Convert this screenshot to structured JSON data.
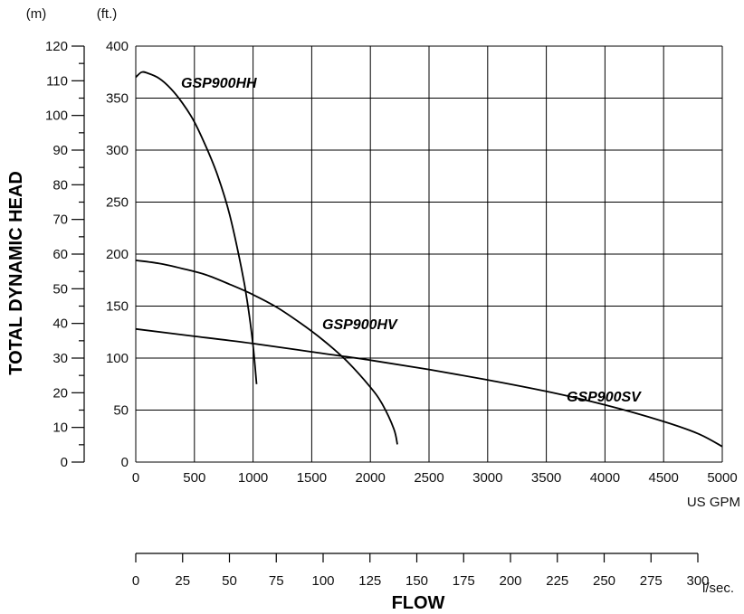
{
  "chart_data": {
    "type": "line",
    "xlabel": "FLOW",
    "ylabel": "TOTAL DYNAMIC HEAD",
    "x_unit": "US GPM",
    "x2_unit": "l/sec.",
    "y_unit_left": "(m)",
    "y_unit_right": "(ft.)",
    "xlim": [
      0,
      5000
    ],
    "ylim_ft": [
      0,
      400
    ],
    "ylim_m": [
      0,
      120
    ],
    "grid": true,
    "x_ticks": [
      0,
      500,
      1000,
      1500,
      2000,
      2500,
      3000,
      3500,
      4000,
      4500,
      5000
    ],
    "x2_ticks": [
      0,
      25,
      50,
      75,
      100,
      125,
      150,
      175,
      200,
      225,
      250,
      275,
      300
    ],
    "y_ticks_ft": [
      0,
      50,
      100,
      150,
      200,
      250,
      300,
      350,
      400
    ],
    "y_ticks_m": [
      0,
      10,
      20,
      30,
      40,
      50,
      60,
      70,
      80,
      90,
      100,
      110,
      120
    ],
    "series": [
      {
        "name": "GSP900HH",
        "points": [
          [
            0,
            370
          ],
          [
            50,
            375
          ],
          [
            100,
            374
          ],
          [
            200,
            369
          ],
          [
            300,
            359
          ],
          [
            400,
            345
          ],
          [
            500,
            327
          ],
          [
            600,
            303
          ],
          [
            700,
            275
          ],
          [
            800,
            238
          ],
          [
            900,
            187
          ],
          [
            950,
            155
          ],
          [
            1000,
            112
          ],
          [
            1030,
            75
          ]
        ]
      },
      {
        "name": "GSP900HV",
        "points": [
          [
            0,
            194
          ],
          [
            200,
            191
          ],
          [
            400,
            186
          ],
          [
            600,
            180
          ],
          [
            800,
            171
          ],
          [
            1000,
            161
          ],
          [
            1200,
            149
          ],
          [
            1400,
            134
          ],
          [
            1600,
            117
          ],
          [
            1800,
            97
          ],
          [
            2000,
            72
          ],
          [
            2100,
            56
          ],
          [
            2200,
            32
          ],
          [
            2230,
            17
          ]
        ]
      },
      {
        "name": "GSP900SV",
        "points": [
          [
            0,
            128
          ],
          [
            500,
            121
          ],
          [
            1000,
            114
          ],
          [
            1500,
            106
          ],
          [
            2000,
            98
          ],
          [
            2500,
            89
          ],
          [
            3000,
            79
          ],
          [
            3500,
            68
          ],
          [
            4000,
            55
          ],
          [
            4500,
            39
          ],
          [
            4800,
            27
          ],
          [
            5000,
            15
          ]
        ]
      }
    ]
  }
}
